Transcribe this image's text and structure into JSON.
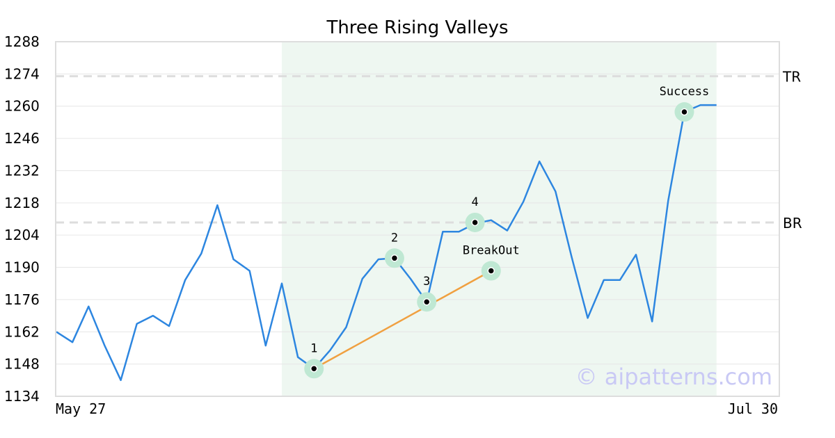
{
  "chart_data": {
    "type": "line",
    "title": "Three Rising Valleys",
    "xlabel": "",
    "ylabel": "",
    "ylim": [
      1134,
      1288
    ],
    "yticks": [
      1134,
      1148,
      1162,
      1176,
      1190,
      1204,
      1218,
      1232,
      1246,
      1260,
      1274,
      1288
    ],
    "x_range_labels": [
      "May 27",
      "Jul 30"
    ],
    "grid": "horizontal",
    "series": [
      {
        "values": [
          1162,
          1157.5,
          1173,
          1156,
          1141,
          1165.5,
          1169,
          1164.5,
          1184.5,
          1196,
          1217,
          1193.5,
          1188.5,
          1156,
          1183,
          1151,
          1146,
          1154,
          1164,
          1185,
          1193.5,
          1194,
          1185,
          1175,
          1205.5,
          1205.5,
          1209,
          1210.5,
          1206,
          1218.5,
          1236,
          1223,
          1194.5,
          1168,
          1184.5,
          1184.5,
          1195.5,
          1166.5,
          1219,
          1257.5,
          1260.5,
          1260.5
        ],
        "color": "#2d86e0"
      }
    ],
    "highlight_region": {
      "from_index": 14,
      "to_index": 41,
      "color": "#eef7f1"
    },
    "reference_lines": [
      {
        "label": "TR",
        "value": 1273
      },
      {
        "label": "BR",
        "value": 1209.5
      }
    ],
    "trend_line": {
      "color": "#f0a040",
      "from": {
        "index": 16,
        "value": 1146
      },
      "to": {
        "index": 27,
        "value": 1188.5
      }
    },
    "annotations": [
      {
        "label": "1",
        "index": 16,
        "value": 1146,
        "label_side": "above"
      },
      {
        "label": "2",
        "index": 21,
        "value": 1194,
        "label_side": "above"
      },
      {
        "label": "3",
        "index": 23,
        "value": 1175,
        "label_side": "above"
      },
      {
        "label": "4",
        "index": 26,
        "value": 1209.5,
        "label_side": "above"
      },
      {
        "label": "BreakOut",
        "index": 27,
        "value": 1188.5,
        "label_side": "above"
      },
      {
        "label": "Success",
        "index": 39,
        "value": 1257.5,
        "label_side": "above"
      }
    ],
    "colors": {
      "line": "#2d86e0",
      "trend": "#f0a040",
      "marker_halo": "#bfe8d3",
      "marker_dot": "#000000",
      "reference": "#dddddd",
      "grid": "#e6e6e6",
      "frame": "#dddddd",
      "highlight": "#eef7f1"
    }
  },
  "watermark": "© aipatterns.com"
}
